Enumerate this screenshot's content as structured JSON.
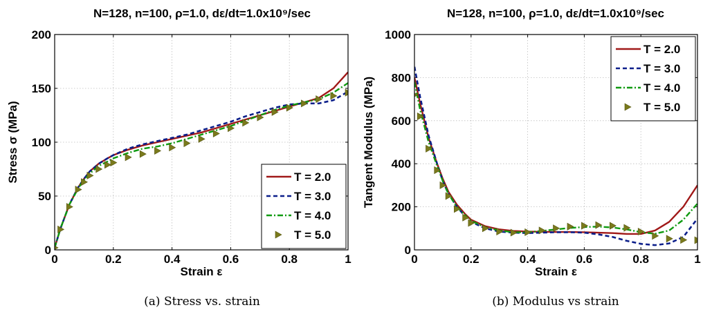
{
  "colors": {
    "T2": "#a01818",
    "T3": "#0b1e8a",
    "T4": "#0f9a10",
    "T5": "#7a7a1c"
  },
  "chart_data": [
    {
      "type": "line",
      "title": "N=128, n=100, ρ=1.0, dε/dt=1.0x10⁹/sec",
      "xlabel": "Strain ε",
      "ylabel": "Stress σ (MPa)",
      "caption": "(a) Stress vs. strain",
      "xlim": [
        0,
        1
      ],
      "ylim": [
        0,
        200
      ],
      "xticks": [
        "0",
        "0.2",
        "0.4",
        "0.6",
        "0.8",
        "1"
      ],
      "yticks": [
        "0",
        "50",
        "100",
        "150",
        "200"
      ],
      "grid": true,
      "legend_position": "bottom-right",
      "x": [
        0,
        0.02,
        0.05,
        0.08,
        0.1,
        0.12,
        0.15,
        0.18,
        0.2,
        0.25,
        0.3,
        0.35,
        0.4,
        0.45,
        0.5,
        0.55,
        0.6,
        0.65,
        0.7,
        0.75,
        0.8,
        0.85,
        0.9,
        0.95,
        1.0
      ],
      "series": [
        {
          "name": "T = 2.0",
          "style": "solid",
          "color_key": "T2",
          "values": [
            2,
            20,
            42,
            58,
            66,
            73,
            80,
            85,
            88,
            93,
            97,
            100,
            103,
            106,
            109,
            113,
            117,
            121,
            125,
            129,
            133,
            137,
            141,
            150,
            165
          ]
        },
        {
          "name": "T = 3.0",
          "style": "dashed",
          "color_key": "T3",
          "values": [
            2,
            20,
            42,
            58,
            66,
            73,
            80,
            85,
            88,
            94,
            98,
            101,
            104,
            107,
            111,
            115,
            119,
            124,
            128,
            132,
            135,
            136,
            136,
            139,
            147
          ]
        },
        {
          "name": "T = 4.0",
          "style": "dashdot",
          "color_key": "T4",
          "values": [
            2,
            20,
            42,
            57,
            65,
            71,
            78,
            82,
            85,
            90,
            94,
            96,
            99,
            103,
            107,
            111,
            115,
            120,
            125,
            130,
            134,
            137,
            140,
            146,
            155
          ]
        },
        {
          "name": "T = 5.0",
          "style": "markers",
          "color_key": "T5",
          "values": [
            2,
            19,
            40,
            56,
            63,
            69,
            75,
            79,
            81,
            86,
            89,
            92,
            95,
            99,
            103,
            108,
            113,
            118,
            123,
            128,
            132,
            136,
            140,
            143,
            146
          ]
        }
      ]
    },
    {
      "type": "line",
      "title": "N=128, n=100, ρ=1.0, dε/dt=1.0x10⁹/sec",
      "xlabel": "Strain ε",
      "ylabel": "Tangent Modulus (MPa)",
      "caption": "(b) Modulus vs strain",
      "xlim": [
        0,
        1
      ],
      "ylim": [
        0,
        1000
      ],
      "xticks": [
        "0",
        "0.2",
        "0.4",
        "0.6",
        "0.8",
        "1"
      ],
      "yticks": [
        "0",
        "200",
        "400",
        "600",
        "800",
        "1000"
      ],
      "grid": true,
      "legend_position": "top-right",
      "x": [
        0,
        0.02,
        0.05,
        0.08,
        0.1,
        0.12,
        0.15,
        0.18,
        0.2,
        0.25,
        0.3,
        0.35,
        0.4,
        0.45,
        0.5,
        0.55,
        0.6,
        0.65,
        0.7,
        0.75,
        0.8,
        0.85,
        0.9,
        0.95,
        1.0
      ],
      "series": [
        {
          "name": "T = 2.0",
          "style": "solid",
          "color_key": "T2",
          "values": [
            800,
            680,
            520,
            400,
            330,
            270,
            210,
            165,
            140,
            110,
            95,
            88,
            85,
            84,
            83,
            83,
            82,
            80,
            78,
            74,
            74,
            90,
            130,
            200,
            300
          ]
        },
        {
          "name": "T = 3.0",
          "style": "dashed",
          "color_key": "T3",
          "values": [
            850,
            710,
            530,
            400,
            320,
            260,
            200,
            155,
            130,
            100,
            85,
            80,
            78,
            80,
            82,
            82,
            80,
            72,
            60,
            42,
            28,
            22,
            30,
            60,
            145
          ]
        },
        {
          "name": "T = 4.0",
          "style": "dashdot",
          "color_key": "T4",
          "values": [
            780,
            650,
            500,
            390,
            320,
            260,
            200,
            160,
            135,
            105,
            90,
            82,
            82,
            88,
            95,
            102,
            106,
            108,
            104,
            95,
            82,
            75,
            90,
            140,
            215
          ]
        },
        {
          "name": "T = 5.0",
          "style": "markers",
          "color_key": "T5",
          "values": [
            720,
            620,
            470,
            370,
            300,
            250,
            190,
            150,
            125,
            100,
            85,
            80,
            82,
            90,
            100,
            108,
            112,
            115,
            112,
            102,
            85,
            65,
            52,
            46,
            45
          ]
        }
      ]
    }
  ]
}
